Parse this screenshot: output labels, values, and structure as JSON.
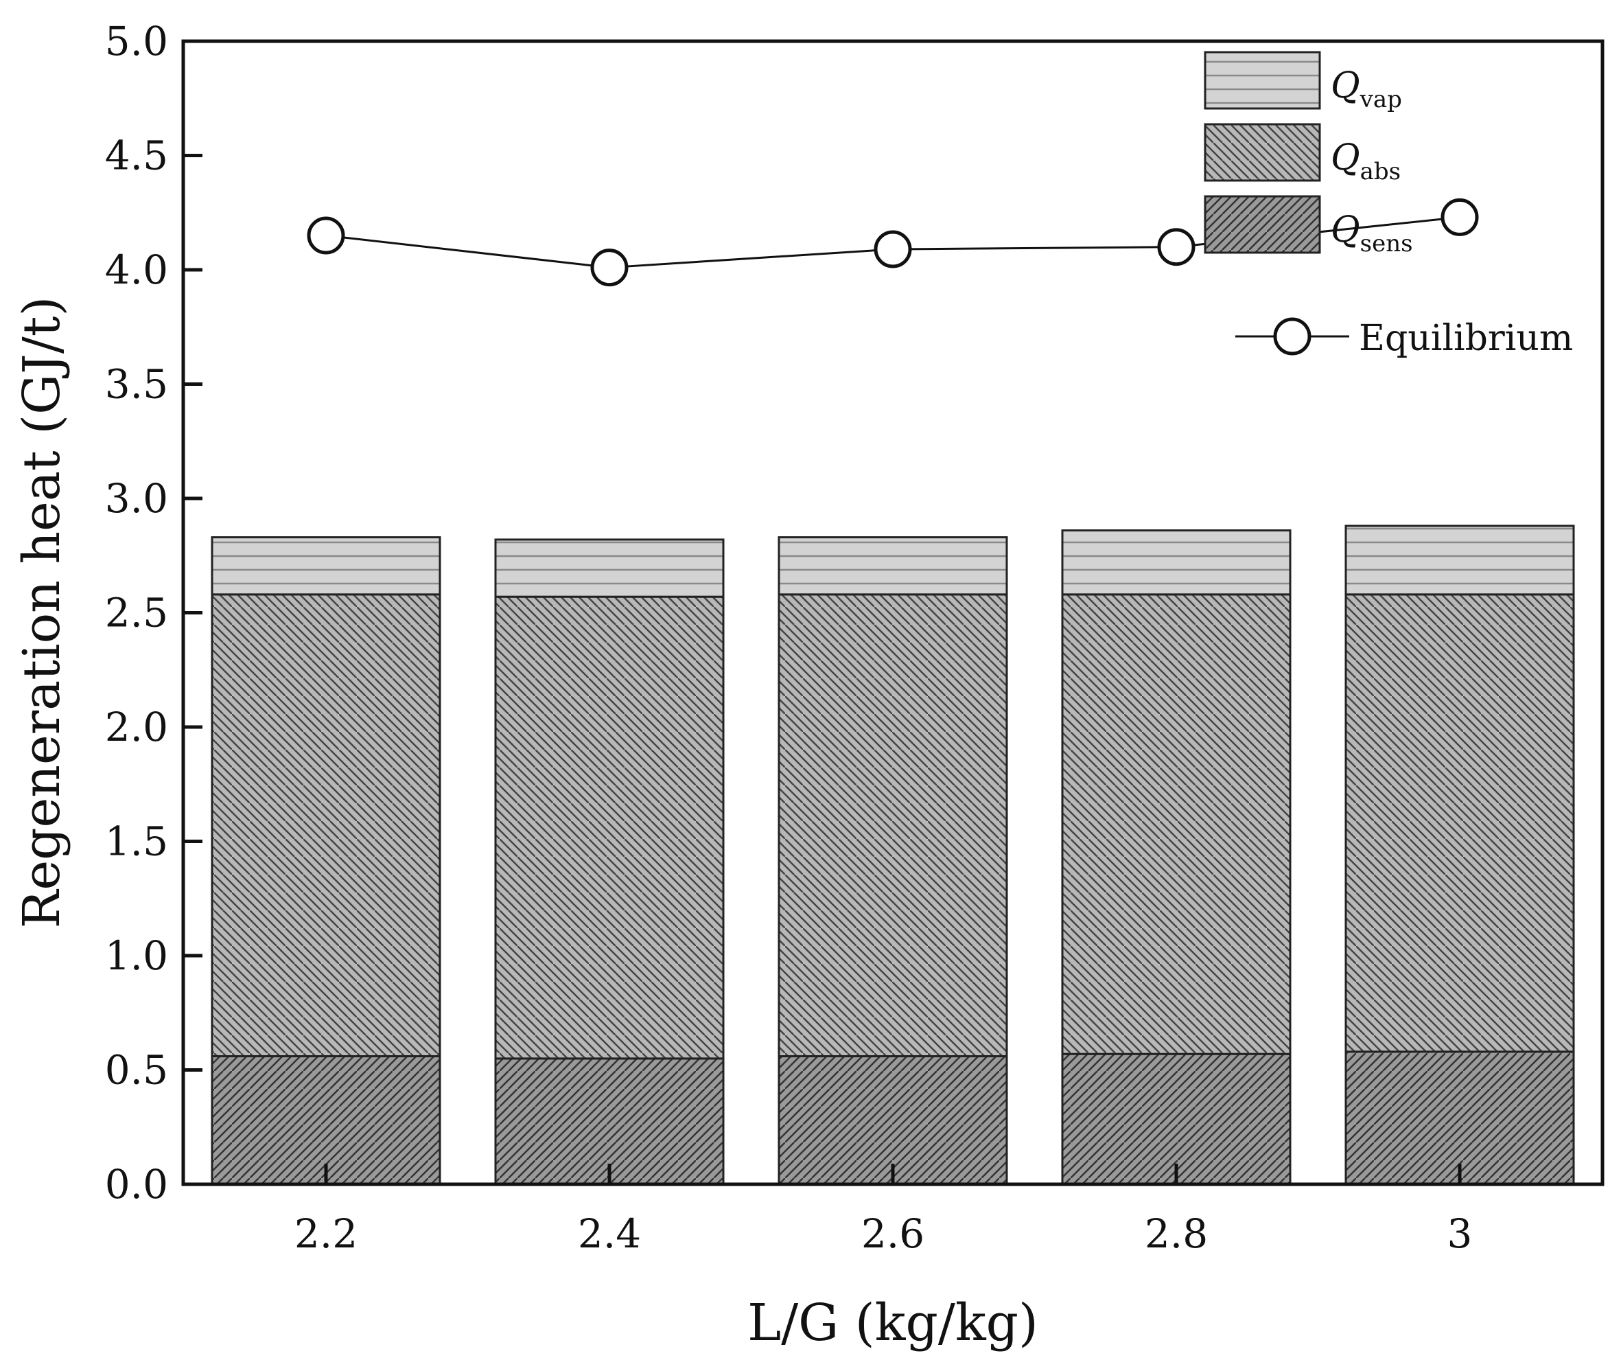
{
  "chart_data": {
    "type": "bar",
    "stacked": true,
    "categories": [
      "2.2",
      "2.4",
      "2.6",
      "2.8",
      "3"
    ],
    "series": [
      {
        "name": "Q_sens",
        "label_main": "Q",
        "label_sub": "sens",
        "values": [
          0.56,
          0.55,
          0.56,
          0.57,
          0.58
        ],
        "color": "#9a9a9a",
        "hatch": "forward-diagonal"
      },
      {
        "name": "Q_abs",
        "label_main": "Q",
        "label_sub": "abs",
        "values": [
          2.02,
          2.02,
          2.02,
          2.01,
          2.0
        ],
        "color": "#b8b8b8",
        "hatch": "back-diagonal"
      },
      {
        "name": "Q_vap",
        "label_main": "Q",
        "label_sub": "vap",
        "values": [
          0.25,
          0.25,
          0.25,
          0.28,
          0.3
        ],
        "color": "#d3d3d3",
        "hatch": "horizontal"
      }
    ],
    "line_series": {
      "name": "Equilibrium",
      "label": "Equilibrium",
      "values": [
        4.15,
        4.01,
        4.09,
        4.1,
        4.23
      ],
      "marker": "open-circle"
    },
    "title": "",
    "xlabel": "L/G (kg/kg)",
    "ylabel": "Regeneration heat (GJ/t)",
    "ylim": [
      0,
      5
    ],
    "yticks": [
      "0.0",
      "0.5",
      "1.0",
      "1.5",
      "2.0",
      "2.5",
      "3.0",
      "3.5",
      "4.0",
      "4.5",
      "5.0"
    ],
    "grid": false,
    "legend_position": "top-right"
  }
}
